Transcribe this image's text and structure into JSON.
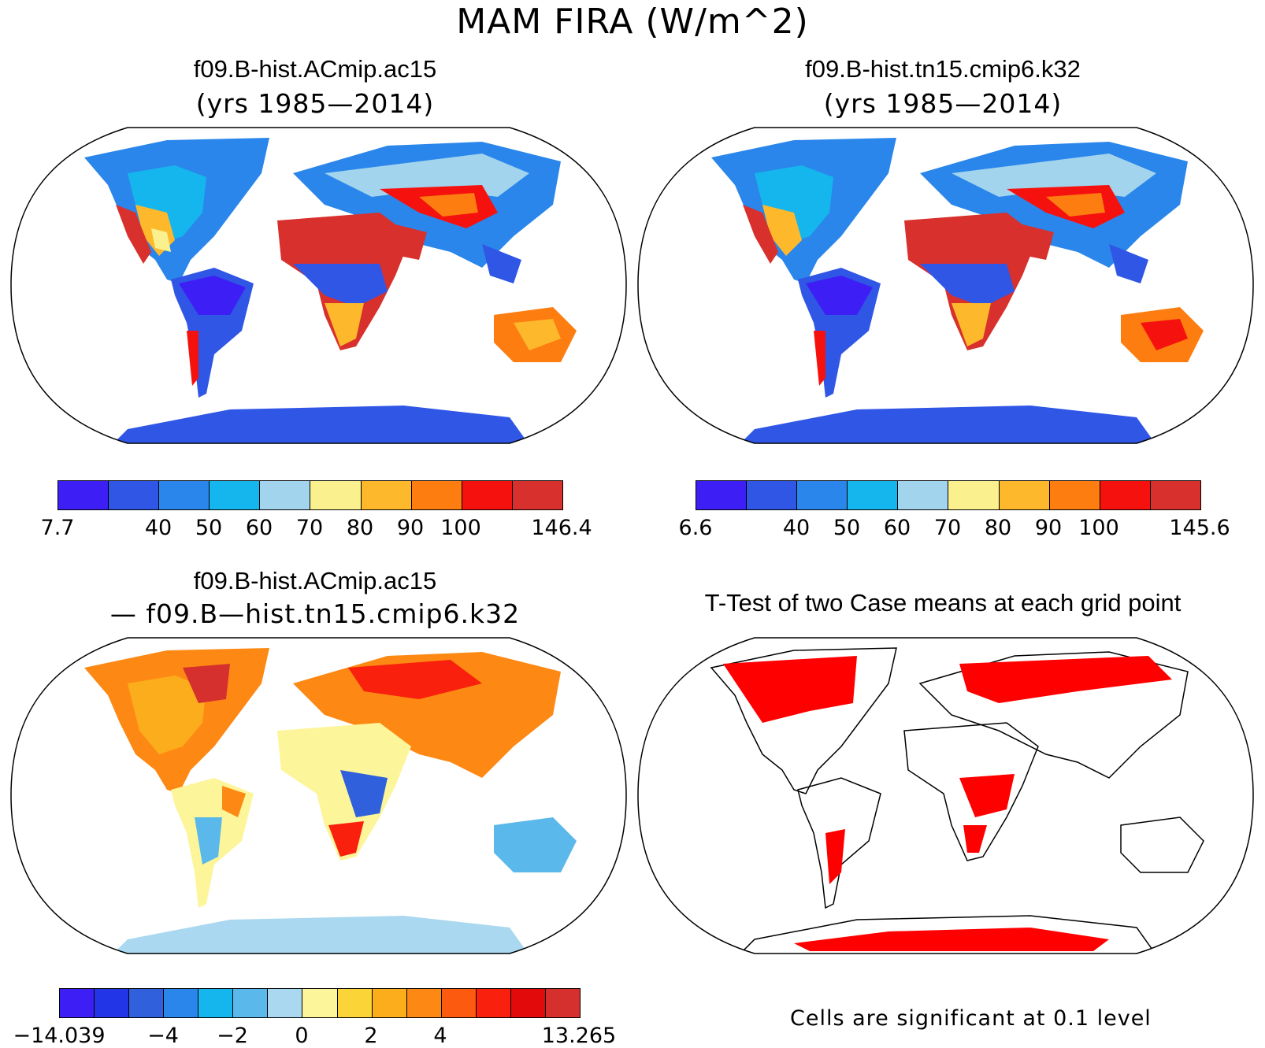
{
  "title": "MAM FIRA (W/m^2)",
  "panels": [
    {
      "title": "f09.B-hist.ACmip.ac15",
      "subtitle": "(yrs 1985—2014)"
    },
    {
      "title": "f09.B-hist.tn15.cmip6.k32",
      "subtitle": "(yrs 1985—2014)"
    },
    {
      "title": "f09.B-hist.ACmip.ac15",
      "subtitle": "— f09.B—hist.tn15.cmip6.k32"
    },
    {
      "title": "T-Test of two Case means at each grid point",
      "subtitle": ""
    }
  ],
  "colorbars": [
    {
      "colors": [
        "#3d1ff5",
        "#3056e6",
        "#2a86ea",
        "#15b6ee",
        "#a3d4ee",
        "#fbf08e",
        "#fdb92b",
        "#fd7d10",
        "#f5120e",
        "#d8302c"
      ],
      "labels": [
        "7.7",
        "",
        "40",
        "50",
        "60",
        "70",
        "80",
        "90",
        "100",
        "",
        "146.4"
      ]
    },
    {
      "colors": [
        "#3d1ff5",
        "#3056e6",
        "#2a86ea",
        "#15b6ee",
        "#a3d4ee",
        "#fbf08e",
        "#fdb92b",
        "#fd7d10",
        "#f5120e",
        "#d8302c"
      ],
      "labels": [
        "6.6",
        "",
        "40",
        "50",
        "60",
        "70",
        "80",
        "90",
        "100",
        "",
        "145.6"
      ]
    },
    {
      "colors": [
        "#3d1ff5",
        "#2236e8",
        "#3060dc",
        "#2a86ea",
        "#15b6ee",
        "#5ab8ea",
        "#a9d8f0",
        "#fdf59a",
        "#fbd437",
        "#fbad1c",
        "#fd8914",
        "#fc5a0f",
        "#f9200d",
        "#e30a0c",
        "#d5302d"
      ],
      "labels": [
        "−14.039",
        "",
        "",
        "−4",
        "",
        "−2",
        "",
        "0",
        "",
        "2",
        "",
        "4",
        "",
        "",
        "",
        "13.265"
      ]
    }
  ],
  "ttest_note": "Cells are significant at 0.1 level"
}
